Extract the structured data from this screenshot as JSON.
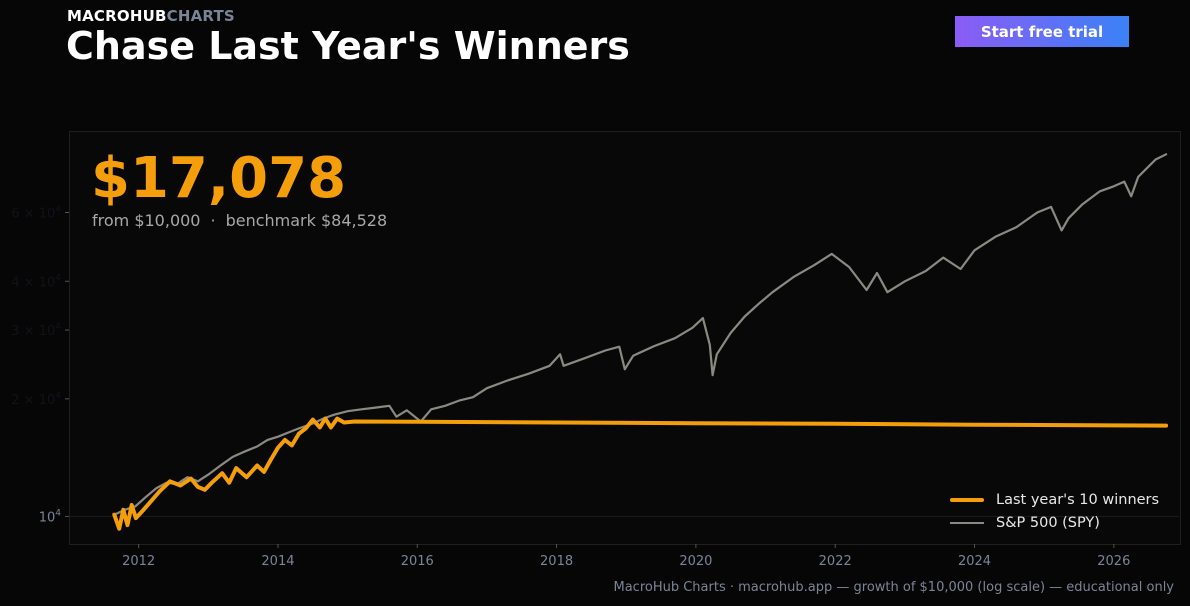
{
  "brand": {
    "part1": "MACROHUB",
    "part2": "CHARTS"
  },
  "header": {
    "title": "Chase Last Year's Winners",
    "cta_label": "Start free trial"
  },
  "summary": {
    "value": "$17,078",
    "from": "from $10,000",
    "separator": "·",
    "benchmark": "benchmark $84,528"
  },
  "footer": "MacroHub Charts · macrohub.app  —  growth of $10,000 (log scale) — educational only",
  "colors": {
    "strategy": "#f59e0b",
    "benchmark": "#8a8a82",
    "background": "#060606",
    "panel": "#080808",
    "cta_start": "#8b5cf6",
    "cta_end": "#3b82f6"
  },
  "chart_data": {
    "type": "line",
    "scale": "log",
    "x_ticks": [
      "2012",
      "2014",
      "2016",
      "2018",
      "2020",
      "2022",
      "2024",
      "2026"
    ],
    "y_ticks": [
      {
        "base": "10",
        "exp": "4",
        "value": 10000
      },
      {
        "base": "2 × 10",
        "exp": "4",
        "value": 20000
      },
      {
        "base": "3 × 10",
        "exp": "4",
        "value": 30000
      },
      {
        "base": "4 × 10",
        "exp": "4",
        "value": 40000
      },
      {
        "base": "6 × 10",
        "exp": "4",
        "value": 60000
      }
    ],
    "xlim": [
      2011.0,
      2026.95
    ],
    "ylim": [
      8500,
      97000
    ],
    "grid": false,
    "legend_position": "bottom-right",
    "series": [
      {
        "name": "Last year's 10 winners",
        "points": [
          [
            2011.65,
            10100
          ],
          [
            2011.72,
            9300
          ],
          [
            2011.78,
            10400
          ],
          [
            2011.84,
            9500
          ],
          [
            2011.9,
            10700
          ],
          [
            2011.96,
            9900
          ],
          [
            2012.05,
            10300
          ],
          [
            2012.15,
            10800
          ],
          [
            2012.3,
            11600
          ],
          [
            2012.45,
            12300
          ],
          [
            2012.6,
            12000
          ],
          [
            2012.75,
            12500
          ],
          [
            2012.85,
            11900
          ],
          [
            2012.95,
            11700
          ],
          [
            2013.05,
            12200
          ],
          [
            2013.2,
            12900
          ],
          [
            2013.3,
            12200
          ],
          [
            2013.4,
            13300
          ],
          [
            2013.55,
            12600
          ],
          [
            2013.7,
            13500
          ],
          [
            2013.8,
            13000
          ],
          [
            2013.9,
            14000
          ],
          [
            2014.0,
            15000
          ],
          [
            2014.1,
            15700
          ],
          [
            2014.2,
            15200
          ],
          [
            2014.3,
            16300
          ],
          [
            2014.4,
            16800
          ],
          [
            2014.5,
            17700
          ],
          [
            2014.6,
            16900
          ],
          [
            2014.68,
            17800
          ],
          [
            2014.76,
            16900
          ],
          [
            2014.85,
            17800
          ],
          [
            2014.95,
            17400
          ],
          [
            2015.1,
            17500
          ],
          [
            2016.0,
            17480
          ],
          [
            2018.0,
            17400
          ],
          [
            2020.0,
            17330
          ],
          [
            2022.0,
            17260
          ],
          [
            2024.0,
            17170
          ],
          [
            2026.0,
            17100
          ],
          [
            2026.75,
            17078
          ]
        ]
      },
      {
        "name": "S&P 500 (SPY)",
        "points": [
          [
            2011.65,
            10100
          ],
          [
            2011.8,
            10400
          ],
          [
            2011.95,
            10600
          ],
          [
            2012.1,
            11200
          ],
          [
            2012.25,
            11800
          ],
          [
            2012.4,
            12200
          ],
          [
            2012.55,
            12100
          ],
          [
            2012.7,
            12600
          ],
          [
            2012.85,
            12300
          ],
          [
            2013.0,
            12800
          ],
          [
            2013.2,
            13600
          ],
          [
            2013.35,
            14200
          ],
          [
            2013.5,
            14600
          ],
          [
            2013.7,
            15100
          ],
          [
            2013.85,
            15700
          ],
          [
            2014.0,
            16000
          ],
          [
            2014.15,
            16400
          ],
          [
            2014.3,
            16800
          ],
          [
            2014.5,
            17300
          ],
          [
            2014.65,
            17800
          ],
          [
            2014.8,
            18200
          ],
          [
            2015.0,
            18600
          ],
          [
            2015.2,
            18800
          ],
          [
            2015.4,
            19000
          ],
          [
            2015.6,
            19200
          ],
          [
            2015.7,
            18000
          ],
          [
            2015.85,
            18700
          ],
          [
            2016.05,
            17500
          ],
          [
            2016.2,
            18800
          ],
          [
            2016.4,
            19200
          ],
          [
            2016.6,
            19800
          ],
          [
            2016.8,
            20200
          ],
          [
            2017.0,
            21300
          ],
          [
            2017.3,
            22300
          ],
          [
            2017.6,
            23200
          ],
          [
            2017.9,
            24300
          ],
          [
            2018.05,
            26000
          ],
          [
            2018.1,
            24300
          ],
          [
            2018.4,
            25400
          ],
          [
            2018.7,
            26600
          ],
          [
            2018.9,
            27200
          ],
          [
            2018.98,
            23800
          ],
          [
            2019.1,
            25800
          ],
          [
            2019.4,
            27300
          ],
          [
            2019.7,
            28600
          ],
          [
            2019.95,
            30400
          ],
          [
            2020.1,
            32200
          ],
          [
            2020.2,
            27500
          ],
          [
            2020.24,
            23000
          ],
          [
            2020.3,
            26000
          ],
          [
            2020.5,
            29500
          ],
          [
            2020.7,
            32500
          ],
          [
            2020.9,
            35000
          ],
          [
            2021.1,
            37500
          ],
          [
            2021.4,
            41000
          ],
          [
            2021.7,
            44000
          ],
          [
            2021.95,
            47000
          ],
          [
            2022.2,
            43500
          ],
          [
            2022.45,
            38000
          ],
          [
            2022.6,
            42000
          ],
          [
            2022.75,
            37500
          ],
          [
            2023.0,
            40000
          ],
          [
            2023.3,
            42500
          ],
          [
            2023.55,
            46000
          ],
          [
            2023.8,
            43000
          ],
          [
            2024.0,
            48000
          ],
          [
            2024.3,
            52000
          ],
          [
            2024.6,
            55000
          ],
          [
            2024.9,
            60000
          ],
          [
            2025.1,
            62000
          ],
          [
            2025.25,
            54000
          ],
          [
            2025.35,
            58000
          ],
          [
            2025.55,
            63000
          ],
          [
            2025.8,
            68000
          ],
          [
            2026.0,
            70000
          ],
          [
            2026.15,
            72000
          ],
          [
            2026.25,
            66000
          ],
          [
            2026.35,
            74000
          ],
          [
            2026.6,
            82000
          ],
          [
            2026.75,
            84528
          ]
        ]
      }
    ]
  }
}
